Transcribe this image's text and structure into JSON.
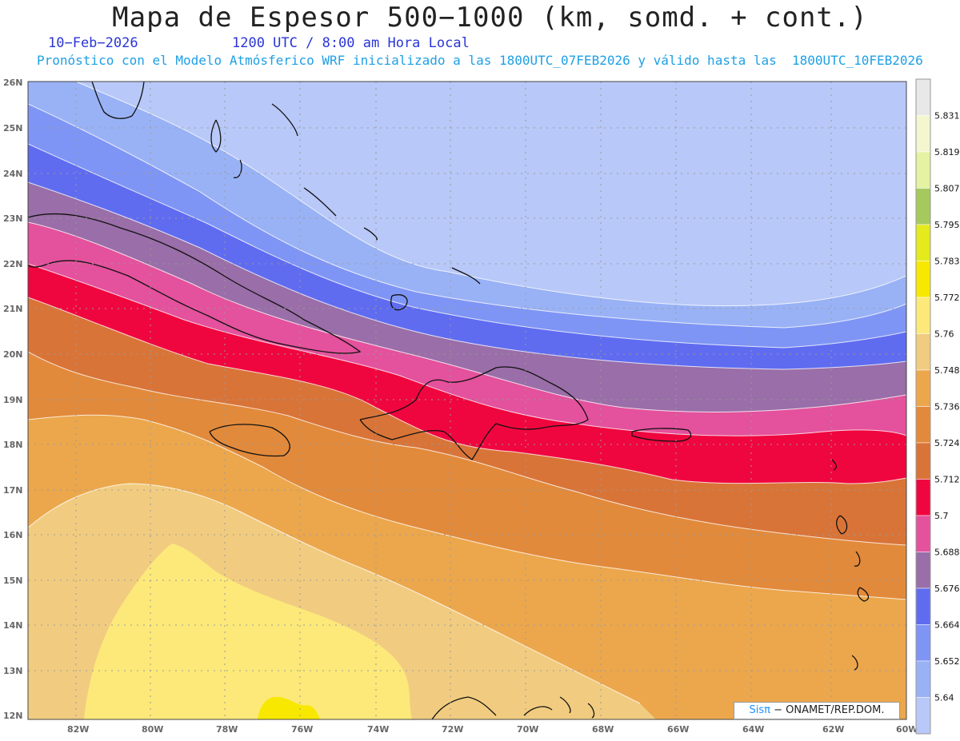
{
  "header": {
    "title": "Mapa de Espesor 500−1000 (km, somd. + cont.)",
    "date": "10−Feb−2026",
    "time": "1200 UTC / 8:00 am Hora Local",
    "forecast": "Pronóstico con el Modelo Atmósferico WRF inicializado a las 1800UTC_07FEB2026 y válido hasta las  1800UTC_10FEB2026"
  },
  "axes": {
    "lat_labels": [
      "26N",
      "25N",
      "24N",
      "23N",
      "22N",
      "21N",
      "20N",
      "19N",
      "18N",
      "17N",
      "16N",
      "15N",
      "14N",
      "13N",
      "12N"
    ],
    "lon_labels": [
      "82W",
      "80W",
      "78W",
      "76W",
      "74W",
      "72W",
      "70W",
      "68W",
      "66W",
      "64W",
      "62W",
      "60W"
    ]
  },
  "colorbar": {
    "levels": [
      "5.831",
      "5.819",
      "5.807",
      "5.795",
      "5.783",
      "5.772",
      "5.76",
      "5.748",
      "5.736",
      "5.724",
      "5.712",
      "5.7",
      "5.688",
      "5.676",
      "5.664",
      "5.652",
      "5.64"
    ],
    "colors": [
      "#e8e8e8",
      "#f3f6cf",
      "#e4f2a2",
      "#a6c95e",
      "#e4ea1c",
      "#f8e800",
      "#fce97a",
      "#f1cc80",
      "#eca74c",
      "#e28a3b",
      "#d97438",
      "#f0063f",
      "#e4519c",
      "#9a6ea8",
      "#5f6cf0",
      "#7f95f5",
      "#99b2f6",
      "#b8c8f8"
    ]
  },
  "credit": {
    "brand": "Sisπ",
    "text": "− ONAMET/REP.DOM."
  },
  "map_colors": {
    "c5640": "#b8c8f8",
    "c5652": "#99b2f6",
    "c5664": "#7f95f5",
    "c5676": "#5f6cf0",
    "c5688": "#9a6ea8",
    "c5700": "#e4519c",
    "c5712": "#f0063f",
    "c5724": "#d97438",
    "c5736": "#e28a3b",
    "c5748": "#eca74c",
    "c5760": "#f1cc80",
    "c5772": "#fce97a",
    "c5783": "#f8e800"
  }
}
